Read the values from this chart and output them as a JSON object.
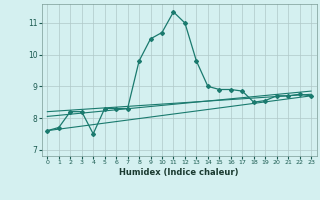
{
  "title": "",
  "xlabel": "Humidex (Indice chaleur)",
  "ylabel": "",
  "background_color": "#d4f0f0",
  "grid_color": "#b0c8c8",
  "line_color": "#1a7a6e",
  "xlim": [
    -0.5,
    23.5
  ],
  "ylim": [
    6.8,
    11.6
  ],
  "yticks": [
    7,
    8,
    9,
    10,
    11
  ],
  "xticks": [
    0,
    1,
    2,
    3,
    4,
    5,
    6,
    7,
    8,
    9,
    10,
    11,
    12,
    13,
    14,
    15,
    16,
    17,
    18,
    19,
    20,
    21,
    22,
    23
  ],
  "series1_x": [
    0,
    1,
    2,
    3,
    4,
    5,
    6,
    7,
    8,
    9,
    10,
    11,
    12,
    13,
    14,
    15,
    16,
    17,
    18,
    19,
    20,
    21,
    22,
    23
  ],
  "series1_y": [
    7.6,
    7.7,
    8.2,
    8.2,
    7.5,
    8.3,
    8.3,
    8.3,
    9.8,
    10.5,
    10.7,
    11.35,
    11.0,
    9.8,
    9.0,
    8.9,
    8.9,
    8.85,
    8.5,
    8.55,
    8.7,
    8.7,
    8.75,
    8.7
  ],
  "series2_x": [
    0,
    23
  ],
  "series2_y": [
    7.6,
    8.7
  ],
  "series3_x": [
    0,
    23
  ],
  "series3_y": [
    8.05,
    8.85
  ],
  "series4_x": [
    0,
    23
  ],
  "series4_y": [
    8.2,
    8.75
  ]
}
